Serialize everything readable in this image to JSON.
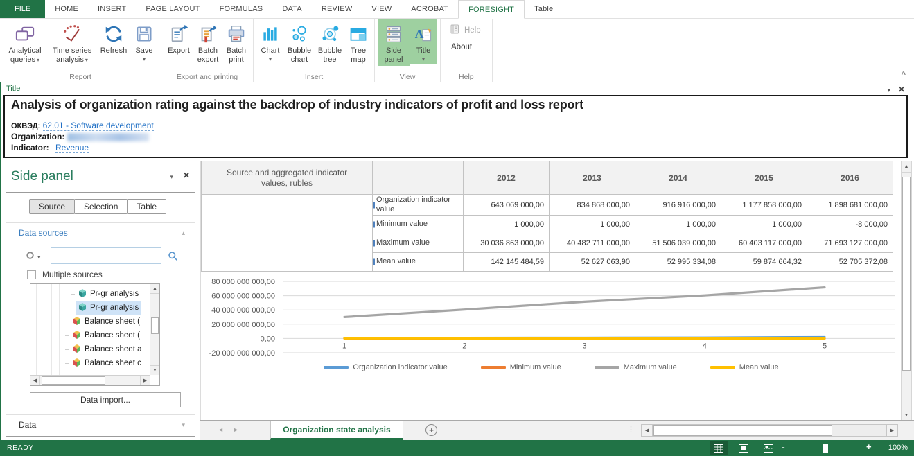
{
  "glyphs": {
    "caret_down": "▾",
    "caret_up": "▴",
    "close": "✕",
    "collapse": "^",
    "nav_left": "◄",
    "nav_right": "►",
    "arrow_up": "▲",
    "arrow_down": "▼",
    "arrow_left": "◀",
    "arrow_right": "▶",
    "dots": "⋮",
    "minus": "-",
    "plus": "+"
  },
  "colors": {
    "accent_green": "#217346",
    "link_blue": "#1f6fc5",
    "panel_blue": "#3b7ebf",
    "ribbon_highlight": "#9ed0a0"
  },
  "tab_bar": {
    "tabs": [
      {
        "label": "FILE"
      },
      {
        "label": "HOME"
      },
      {
        "label": "INSERT"
      },
      {
        "label": "PAGE LAYOUT"
      },
      {
        "label": "FORMULAS"
      },
      {
        "label": "DATA"
      },
      {
        "label": "REVIEW"
      },
      {
        "label": "VIEW"
      },
      {
        "label": "ACROBAT"
      },
      {
        "label": "FORESIGHT",
        "active": true
      },
      {
        "label": "Table"
      }
    ]
  },
  "ribbon": {
    "groups": [
      {
        "label": "Report",
        "buttons": [
          {
            "label": "Analytical queries",
            "caret": "inline"
          },
          {
            "label": "Time series analysis",
            "caret": "inline"
          },
          {
            "label": "Refresh"
          },
          {
            "label": "Save",
            "caret": "below"
          }
        ]
      },
      {
        "label": "Export and printing",
        "buttons": [
          {
            "label": "Export"
          },
          {
            "label": "Batch export"
          },
          {
            "label": "Batch print"
          }
        ]
      },
      {
        "label": "Insert",
        "buttons": [
          {
            "label": "Chart",
            "caret": "below"
          },
          {
            "label": "Bubble chart"
          },
          {
            "label": "Bubble tree"
          },
          {
            "label": "Tree map"
          }
        ]
      },
      {
        "label": "View",
        "buttons": [
          {
            "label": "Side panel",
            "active": true
          },
          {
            "label": "Title",
            "caret": "below",
            "active": true
          }
        ]
      },
      {
        "label": "Help",
        "buttons": [
          {
            "label": "Help",
            "disabled": true
          },
          {
            "label": "About"
          }
        ]
      }
    ]
  },
  "title_panel": {
    "label": "Title",
    "heading": "Analysis of organization rating against the backdrop of industry indicators of profit and loss report",
    "fields": [
      {
        "label": "ОКВЭД:",
        "value": "62.01 - Software development"
      },
      {
        "label": "Organization:",
        "value": ""
      },
      {
        "label": "Indicator:",
        "value": "Revenue"
      }
    ]
  },
  "side_panel": {
    "title": "Side panel",
    "tabs": [
      {
        "label": "Source",
        "active": true
      },
      {
        "label": "Selection"
      },
      {
        "label": "Table"
      }
    ],
    "data_sources_label": "Data sources",
    "search_placeholder": "",
    "multiple_sources_label": "Multiple sources",
    "tree_items": [
      {
        "label": "Pr-gr analysis",
        "icon": "cube-teal"
      },
      {
        "label": "Pr-gr analysis",
        "icon": "cube-teal",
        "selected": true
      },
      {
        "label": "Balance sheet (",
        "icon": "cube-color"
      },
      {
        "label": "Balance sheet (",
        "icon": "cube-color"
      },
      {
        "label": "Balance sheet a",
        "icon": "cube-color"
      },
      {
        "label": "Balance sheet c",
        "icon": "cube-color"
      }
    ],
    "data_import_label": "Data import...",
    "data_section_label": "Data"
  },
  "table": {
    "corner_header": "Source and aggregated indicator values, rubles",
    "years": [
      "2012",
      "2013",
      "2014",
      "2015",
      "2016"
    ],
    "rows": [
      {
        "label": "Organization indicator value",
        "values": [
          "643 069 000,00",
          "834 868 000,00",
          "916 916 000,00",
          "1 177 858 000,00",
          "1 898 681 000,00"
        ]
      },
      {
        "label": "Minimum value",
        "values": [
          "1 000,00",
          "1 000,00",
          "1 000,00",
          "1 000,00",
          "-8 000,00"
        ]
      },
      {
        "label": "Maximum value",
        "values": [
          "30 036 863 000,00",
          "40 482 711 000,00",
          "51 506 039 000,00",
          "60 403 117 000,00",
          "71 693 127 000,00"
        ]
      },
      {
        "label": "Mean value",
        "values": [
          "142 145 484,59",
          "52 627 063,90",
          "52 995 334,08",
          "59 874 664,32",
          "52 705 372,08"
        ]
      }
    ]
  },
  "chart_data": {
    "type": "line",
    "x_labels": [
      "1",
      "2",
      "3",
      "4",
      "5"
    ],
    "y_ticks": [
      {
        "label": "80 000 000 000,00",
        "value": 80000000000
      },
      {
        "label": "60 000 000 000,00",
        "value": 60000000000
      },
      {
        "label": "40 000 000 000,00",
        "value": 40000000000
      },
      {
        "label": "20 000 000 000,00",
        "value": 20000000000
      },
      {
        "label": "0,00",
        "value": 0
      },
      {
        "label": "-20 000 000 000,00",
        "value": -20000000000
      }
    ],
    "ylim": [
      -20000000000,
      88000000000
    ],
    "grid": true,
    "legend_position": "bottom",
    "series": [
      {
        "name": "Organization indicator value",
        "color": "#5B9BD5",
        "values": [
          643069000.0,
          834868000.0,
          916916000.0,
          1177858000.0,
          1898681000.0
        ]
      },
      {
        "name": "Minimum value",
        "color": "#ED7D31",
        "values": [
          1000.0,
          1000.0,
          1000.0,
          1000.0,
          -8000.0
        ]
      },
      {
        "name": "Maximum value",
        "color": "#A5A5A5",
        "values": [
          30036863000.0,
          40482711000.0,
          51506039000.0,
          60403117000.0,
          71693127000.0
        ]
      },
      {
        "name": "Mean value",
        "color": "#FFC000",
        "values": [
          142145484.59,
          52627063.9,
          52995334.08,
          59874664.32,
          52705372.08
        ]
      }
    ]
  },
  "sheet_bar": {
    "active_sheet": "Organization state analysis"
  },
  "status_bar": {
    "status": "READY",
    "zoom": "100%"
  }
}
